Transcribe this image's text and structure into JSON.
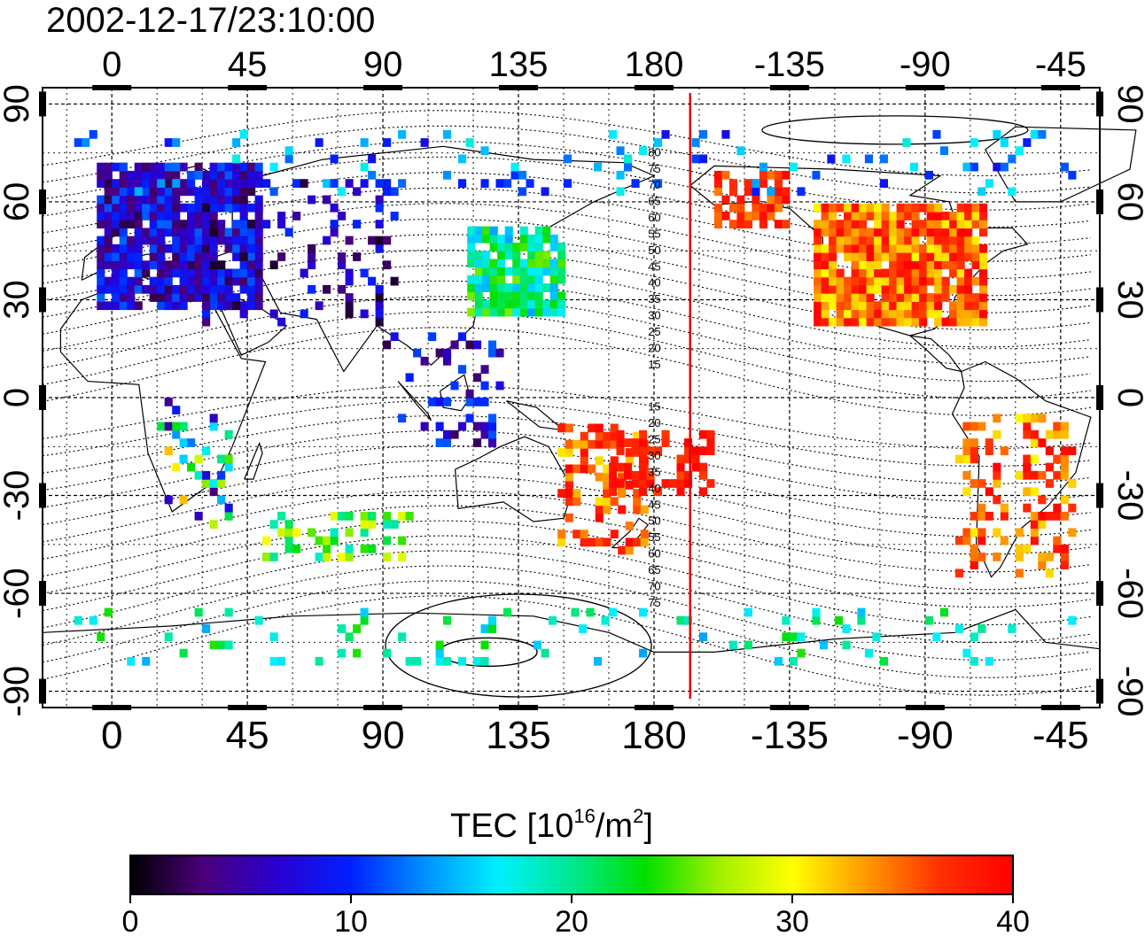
{
  "timestamp": "2002-12-17/23:10:00",
  "map": {
    "x_ticks_top": [
      "0",
      "45",
      "90",
      "135",
      "180",
      "-135",
      "-90",
      "-45"
    ],
    "x_ticks_bottom": [
      "0",
      "45",
      "90",
      "135",
      "180",
      "-135",
      "-90",
      "-45"
    ],
    "y_ticks_left": [
      "90",
      "60",
      "30",
      "0",
      "-30",
      "-60",
      "-90"
    ],
    "y_ticks_right": [
      "90",
      "60",
      "30",
      "0",
      "-30",
      "-60",
      "-90"
    ],
    "x_tick_longitudes": [
      0,
      45,
      90,
      135,
      180,
      225,
      270,
      315
    ],
    "y_tick_latitudes": [
      90,
      60,
      30,
      0,
      -30,
      -60,
      -90
    ],
    "lon_range": [
      -23,
      328
    ],
    "lat_range": [
      -95,
      95
    ],
    "marker_longitude": 192,
    "marker_color": "#e00000",
    "contour_labels_north": [
      "80",
      "75",
      "70",
      "65",
      "60",
      "55",
      "50",
      "45",
      "40",
      "35",
      "30",
      "25",
      "20",
      "15"
    ],
    "contour_labels_south": [
      "15",
      "20",
      "25",
      "30",
      "35",
      "40",
      "45",
      "50",
      "55",
      "60",
      "65",
      "70",
      "75"
    ]
  },
  "colorbar": {
    "title_main": "TEC  [10",
    "title_sup1": "16",
    "title_mid": "/m",
    "title_sup2": "2",
    "title_end": "]",
    "ticks": [
      "0",
      "10",
      "20",
      "30",
      "40"
    ],
    "tick_values": [
      0,
      10,
      20,
      30,
      40
    ],
    "range": [
      0,
      40
    ],
    "colormap": [
      "#000000",
      "#4a007a",
      "#2a00d0",
      "#0020ff",
      "#0090ff",
      "#00f0ff",
      "#00e890",
      "#00e000",
      "#a0f000",
      "#ffff00",
      "#ff9a00",
      "#ff3000",
      "#ff0000"
    ]
  },
  "chart_data": {
    "type": "heatmap",
    "title": "2002-12-17/23:10:00",
    "variable": "TEC",
    "unit": "10^16/m^2",
    "range": [
      0,
      40
    ],
    "regions": [
      {
        "lon": [
          -5,
          50
        ],
        "lat": [
          27,
          72
        ],
        "tec_range": [
          2,
          12
        ],
        "density": 0.85
      },
      {
        "lon": [
          30,
          95
        ],
        "lat": [
          22,
          65
        ],
        "tec_range": [
          1,
          11
        ],
        "density": 0.18
      },
      {
        "lon": [
          118,
          150
        ],
        "lat": [
          25,
          52
        ],
        "tec_range": [
          14,
          26
        ],
        "density": 0.85
      },
      {
        "lon": [
          200,
          225
        ],
        "lat": [
          52,
          68
        ],
        "tec_range": [
          34,
          40
        ],
        "density": 0.7
      },
      {
        "lon": [
          233,
          290
        ],
        "lat": [
          22,
          58
        ],
        "tec_range": [
          30,
          40
        ],
        "density": 0.9
      },
      {
        "lon": [
          148,
          178
        ],
        "lat": [
          -48,
          -10
        ],
        "tec_range": [
          30,
          40
        ],
        "density": 0.45
      },
      {
        "lon": [
          165,
          200
        ],
        "lat": [
          -30,
          -10
        ],
        "tec_range": [
          36,
          40
        ],
        "density": 0.55
      },
      {
        "lon": [
          280,
          320
        ],
        "lat": [
          -55,
          -5
        ],
        "tec_range": [
          30,
          40
        ],
        "density": 0.3
      },
      {
        "lon": [
          15,
          40
        ],
        "lat": [
          -40,
          -2
        ],
        "tec_range": [
          2,
          34
        ],
        "density": 0.25
      },
      {
        "lon": [
          50,
          100
        ],
        "lat": [
          -50,
          -35
        ],
        "tec_range": [
          18,
          30
        ],
        "density": 0.35
      },
      {
        "lon": [
          -15,
          320
        ],
        "lat": [
          62,
          82
        ],
        "tec_range": [
          8,
          18
        ],
        "density": 0.08
      },
      {
        "lon": [
          -15,
          320
        ],
        "lat": [
          -82,
          -65
        ],
        "tec_range": [
          14,
          24
        ],
        "density": 0.08
      },
      {
        "lon": [
          90,
          130
        ],
        "lat": [
          -15,
          20
        ],
        "tec_range": [
          2,
          12
        ],
        "density": 0.2
      }
    ]
  }
}
